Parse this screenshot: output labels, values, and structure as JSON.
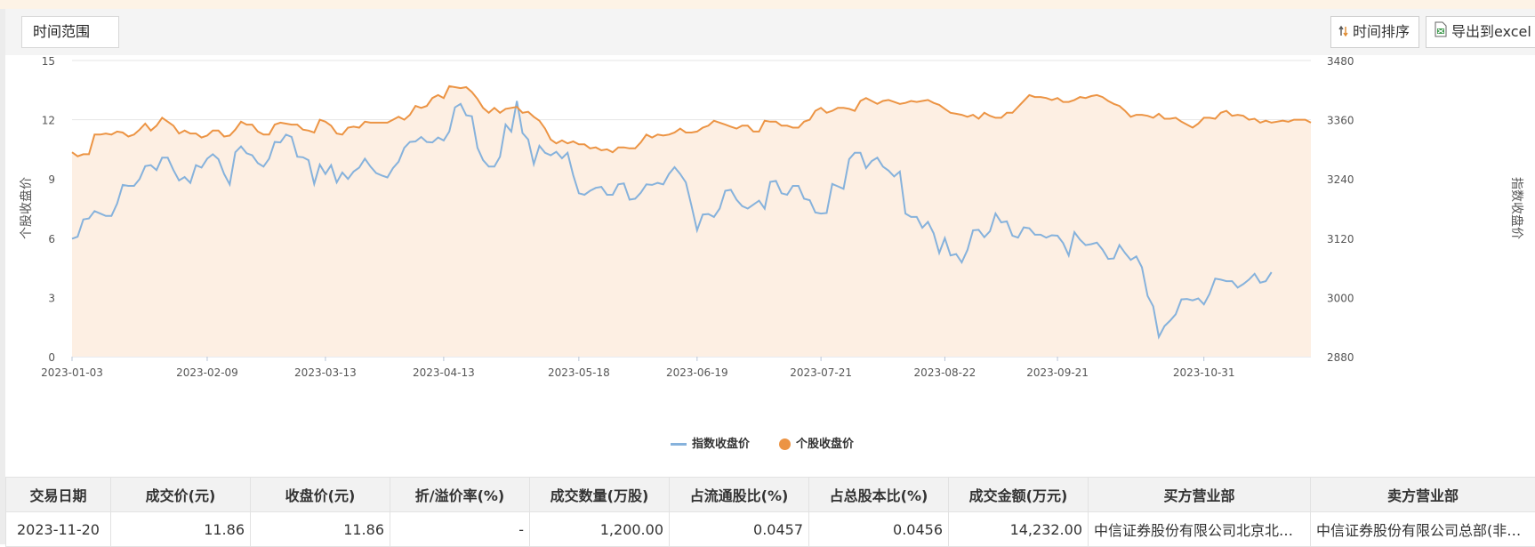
{
  "toolbar": {
    "range_label": "时间范围",
    "sort_label": "时间排序",
    "export_label": "导出到excel"
  },
  "chart_data": {
    "type": "line",
    "left_axis": {
      "label": "个股收盘价",
      "min": 0,
      "max": 15,
      "ticks": [
        "0",
        "3",
        "6",
        "9",
        "12",
        "15"
      ]
    },
    "right_axis": {
      "label": "指数收盘价",
      "min": 2880,
      "max": 3480,
      "ticks": [
        "2880",
        "3000",
        "3120",
        "3240",
        "3360",
        "3480"
      ]
    },
    "x_ticks": [
      "2023-01-03",
      "2023-02-09",
      "2023-03-13",
      "2023-04-13",
      "2023-05-18",
      "2023-06-19",
      "2023-07-21",
      "2023-08-22",
      "2023-09-21",
      "2023-10-31"
    ],
    "legend_position": "bottom-center",
    "grid": true,
    "series": [
      {
        "name": "指数收盘价",
        "axis": "right",
        "color": "#86b2dc",
        "values": [
          3119,
          3123,
          3158,
          3160,
          3175,
          3170,
          3165,
          3165,
          3190,
          3228,
          3226,
          3226,
          3240,
          3266,
          3268,
          3258,
          3283,
          3283,
          3258,
          3237,
          3244,
          3232,
          3268,
          3263,
          3281,
          3290,
          3280,
          3250,
          3229,
          3294,
          3306,
          3292,
          3288,
          3272,
          3265,
          3281,
          3315,
          3314,
          3330,
          3325,
          3285,
          3284,
          3278,
          3230,
          3269,
          3250,
          3268,
          3233,
          3253,
          3240,
          3255,
          3263,
          3281,
          3265,
          3252,
          3247,
          3243,
          3262,
          3275,
          3303,
          3315,
          3316,
          3325,
          3315,
          3314,
          3324,
          3318,
          3336,
          3385,
          3392,
          3369,
          3367,
          3303,
          3278,
          3265,
          3265,
          3285,
          3350,
          3336,
          3398,
          3333,
          3320,
          3270,
          3307,
          3293,
          3288,
          3295,
          3282,
          3293,
          3248,
          3211,
          3208,
          3216,
          3222,
          3224,
          3208,
          3208,
          3229,
          3231,
          3198,
          3200,
          3212,
          3229,
          3228,
          3232,
          3229,
          3250,
          3264,
          3250,
          3233,
          3186,
          3136,
          3168,
          3169,
          3163,
          3180,
          3216,
          3218,
          3198,
          3185,
          3180,
          3188,
          3196,
          3180,
          3234,
          3236,
          3211,
          3208,
          3226,
          3226,
          3200,
          3197,
          3172,
          3170,
          3171,
          3230,
          3225,
          3220,
          3280,
          3293,
          3293,
          3262,
          3276,
          3283,
          3265,
          3257,
          3245,
          3255,
          3170,
          3163,
          3163,
          3141,
          3153,
          3130,
          3090,
          3120,
          3085,
          3088,
          3071,
          3096,
          3136,
          3137,
          3122,
          3134,
          3170,
          3152,
          3154,
          3125,
          3121,
          3142,
          3140,
          3127,
          3127,
          3121,
          3126,
          3125,
          3110,
          3085,
          3132,
          3117,
          3106,
          3108,
          3111,
          3097,
          3078,
          3079,
          3106,
          3090,
          3076,
          3083,
          3061,
          3003,
          2982,
          2920,
          2942,
          2953,
          2966,
          2996,
          2997,
          2994,
          2998,
          2986,
          3007,
          3038,
          3036,
          3033,
          3033,
          3020,
          3027,
          3036,
          3048,
          3030,
          3033,
          3051
        ]
      },
      {
        "name": "个股收盘价",
        "axis": "left",
        "color": "#ec9444",
        "values": [
          10.35,
          10.15,
          10.25,
          10.25,
          11.25,
          11.25,
          11.3,
          11.25,
          11.4,
          11.35,
          11.15,
          11.25,
          11.5,
          11.8,
          11.45,
          11.7,
          12.1,
          11.9,
          11.7,
          11.3,
          11.45,
          11.3,
          11.3,
          11.1,
          11.2,
          11.45,
          11.45,
          11.15,
          11.2,
          11.5,
          11.9,
          11.75,
          11.75,
          11.4,
          11.25,
          11.25,
          11.75,
          11.85,
          11.8,
          11.75,
          11.75,
          11.5,
          11.45,
          11.35,
          12.0,
          11.9,
          11.7,
          11.3,
          11.25,
          11.6,
          11.65,
          11.6,
          11.9,
          11.85,
          11.85,
          11.85,
          11.85,
          12.0,
          12.15,
          12.0,
          12.25,
          12.7,
          12.6,
          12.7,
          13.1,
          13.25,
          13.1,
          13.7,
          13.65,
          13.6,
          13.65,
          13.4,
          13.05,
          12.6,
          12.35,
          12.6,
          12.35,
          12.55,
          12.6,
          12.65,
          12.35,
          12.4,
          12.15,
          11.95,
          11.55,
          11.0,
          10.8,
          10.95,
          10.8,
          10.9,
          10.75,
          10.75,
          10.55,
          10.6,
          10.45,
          10.5,
          10.35,
          10.6,
          10.6,
          10.55,
          10.55,
          10.85,
          11.25,
          11.1,
          11.25,
          11.2,
          11.25,
          11.35,
          11.55,
          11.35,
          11.35,
          11.4,
          11.6,
          11.7,
          11.95,
          11.85,
          11.75,
          11.65,
          11.55,
          11.7,
          11.7,
          11.4,
          11.4,
          11.95,
          11.9,
          11.9,
          11.7,
          11.7,
          11.6,
          11.6,
          11.9,
          12.0,
          12.45,
          12.6,
          12.35,
          12.45,
          12.6,
          12.6,
          12.55,
          12.45,
          12.95,
          13.1,
          12.95,
          12.8,
          12.95,
          13.0,
          12.9,
          12.8,
          12.85,
          12.95,
          12.9,
          12.95,
          13.0,
          12.85,
          12.75,
          12.55,
          12.35,
          12.3,
          12.25,
          12.15,
          12.25,
          12.05,
          12.35,
          12.2,
          12.1,
          12.1,
          12.35,
          12.35,
          12.65,
          12.95,
          13.25,
          13.15,
          13.15,
          13.1,
          13.0,
          13.1,
          12.9,
          12.9,
          13.0,
          13.15,
          13.1,
          13.2,
          13.25,
          13.15,
          12.95,
          12.8,
          12.7,
          12.45,
          12.15,
          12.25,
          12.25,
          12.2,
          12.1,
          12.3,
          12.05,
          12.05,
          12.1,
          11.9,
          11.75,
          11.6,
          11.8,
          12.1,
          12.1,
          12.05,
          12.35,
          12.45,
          12.2,
          12.25,
          12.2,
          12.0,
          12.05,
          11.85,
          11.95,
          11.85,
          11.9,
          11.95,
          11.9,
          12.0,
          12.0,
          12.0,
          11.85
        ]
      }
    ]
  },
  "table": {
    "headers": [
      "交易日期",
      "成交价(元)",
      "收盘价(元)",
      "折/溢价率(%)",
      "成交数量(万股)",
      "占流通股比(%)",
      "占总股本比(%)",
      "成交金额(万元)",
      "买方营业部",
      "卖方营业部"
    ],
    "rows": [
      [
        "2023-11-20",
        "11.86",
        "11.86",
        "-",
        "1,200.00",
        "0.0457",
        "0.0456",
        "14,232.00",
        "中信证券股份有限公司北京北三环东路证券营业部",
        "中信证券股份有限公司总部(非营业场所)"
      ]
    ]
  }
}
